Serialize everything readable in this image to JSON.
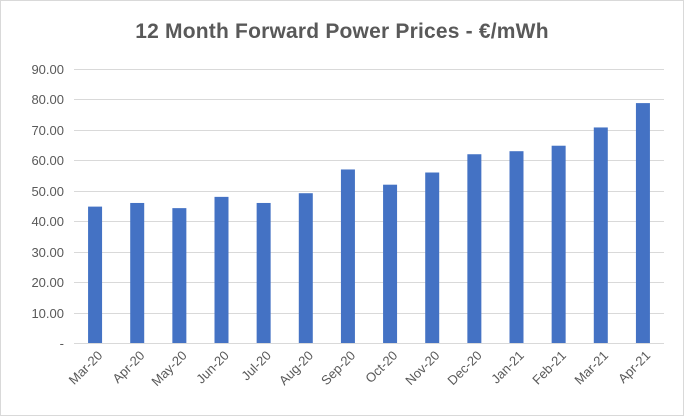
{
  "chart_data": {
    "type": "bar",
    "title": "12 Month Forward Power Prices - €/mWh",
    "xlabel": "",
    "ylabel": "",
    "categories": [
      "Mar-20",
      "Apr-20",
      "May-20",
      "Jun-20",
      "Jul-20",
      "Aug-20",
      "Sep-20",
      "Oct-20",
      "Nov-20",
      "Dec-20",
      "Jan-21",
      "Feb-21",
      "Mar-21",
      "Apr-21"
    ],
    "values": [
      44.8,
      46.0,
      44.3,
      48.0,
      46.0,
      49.2,
      57.0,
      52.0,
      56.0,
      62.0,
      63.0,
      64.8,
      70.8,
      78.8
    ],
    "ylim": [
      0,
      90
    ],
    "yticks": [
      0,
      10,
      20,
      30,
      40,
      50,
      60,
      70,
      80,
      90
    ],
    "ytick_labels": [
      "-",
      "10.00",
      "20.00",
      "30.00",
      "40.00",
      "50.00",
      "60.00",
      "70.00",
      "80.00",
      "90.00"
    ],
    "grid": true,
    "legend": "none",
    "bar_color": "#4472C4",
    "grid_color": "#d9d9d9",
    "text_color": "#595959"
  }
}
